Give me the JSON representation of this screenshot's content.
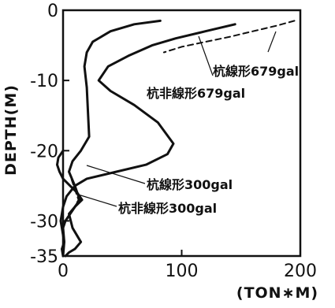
{
  "chart_data": {
    "type": "line",
    "xlabel": "(TON∗M)",
    "ylabel": "DEPTH(M)",
    "xlim": [
      0,
      200
    ],
    "ylim": [
      -35,
      0
    ],
    "xticks": [
      "0",
      "100",
      "200"
    ],
    "yticks": [
      "0",
      "-10",
      "-20",
      "-30",
      "-35"
    ],
    "yticks_values": [
      0,
      -10,
      -20,
      -30,
      -35
    ],
    "xticks_values": [
      0,
      100,
      200
    ],
    "series": [
      {
        "name": "杭非線形679gal",
        "style": "solid",
        "color": "#111111",
        "x": [
          145,
          120,
          95,
          75,
          55,
          38,
          30,
          40,
          60,
          80,
          93,
          88,
          70,
          45,
          20,
          10,
          3,
          0,
          -1,
          -2,
          -1,
          0,
          1,
          -1,
          0
        ],
        "y": [
          -2,
          -3,
          -4,
          -5,
          -6.5,
          -8,
          -10,
          -11.5,
          -13.5,
          -16,
          -19,
          -20.5,
          -22,
          -23,
          -24,
          -25,
          -26.5,
          -28,
          -29,
          -30,
          -31,
          -32,
          -33,
          -34,
          -35
        ]
      },
      {
        "name": "杭線形679gal",
        "style": "dashed",
        "color": "#111111",
        "x": [
          195,
          180,
          160,
          140,
          120,
          100,
          85
        ],
        "y": [
          -1.5,
          -2.2,
          -3,
          -3.8,
          -4.5,
          -5.2,
          -6
        ]
      },
      {
        "name": "杭非線形300gal",
        "style": "solid",
        "color": "#111111",
        "x": [
          82,
          60,
          40,
          25,
          20,
          18,
          20,
          22,
          15,
          8,
          5,
          10,
          14,
          8,
          2,
          0,
          1,
          0
        ],
        "y": [
          -1.5,
          -2,
          -3,
          -4.5,
          -6,
          -8,
          -11,
          -18,
          -20,
          -21.5,
          -23,
          -25,
          -27,
          -28.5,
          -30,
          -31,
          -33,
          -35
        ]
      },
      {
        "name": "杭線形300gal",
        "style": "dashed",
        "color": "#111111",
        "x": [
          82,
          60,
          40,
          25,
          20,
          18,
          20,
          22,
          15,
          8,
          5,
          9,
          13,
          8,
          2,
          0,
          1,
          0
        ],
        "y": [
          -1.5,
          -2,
          -3,
          -4.5,
          -6,
          -8,
          -11,
          -18,
          -20,
          -21.5,
          -23,
          -25,
          -27,
          -28.5,
          -30,
          -31,
          -33,
          -35
        ]
      },
      {
        "name": "杭非線形300gal_b",
        "style": "solid",
        "color": "#111111",
        "x": [
          0,
          -4,
          -5,
          -3,
          0,
          6,
          12,
          16,
          10,
          5,
          8,
          15,
          10,
          5,
          2
        ],
        "y": [
          -20,
          -21,
          -22,
          -23,
          -24,
          -25,
          -26,
          -27,
          -28,
          -29,
          -31,
          -33,
          -34,
          -34.5,
          -35
        ]
      }
    ],
    "annotations": [
      {
        "text": "杭線形679gal"
      },
      {
        "text": "杭非線形679gal"
      },
      {
        "text": "杭線形300gal"
      },
      {
        "text": "杭非線形300gal"
      }
    ]
  }
}
